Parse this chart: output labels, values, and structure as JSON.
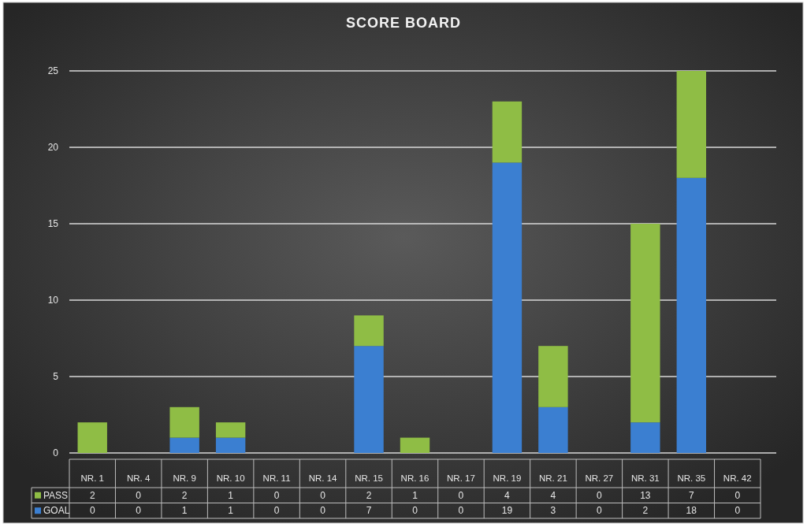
{
  "chart_data": {
    "type": "bar",
    "title": "SCORE BOARD",
    "categories": [
      "NR. 1",
      "NR. 4",
      "NR. 9",
      "NR. 10",
      "NR. 11",
      "NR. 14",
      "NR. 15",
      "NR. 16",
      "NR. 17",
      "NR. 19",
      "NR. 21",
      "NR. 27",
      "NR. 31",
      "NR. 35",
      "NR. 42"
    ],
    "series": [
      {
        "name": "GOAL",
        "color": "#3b7fd1",
        "values": [
          0,
          0,
          1,
          1,
          0,
          0,
          7,
          0,
          0,
          19,
          3,
          0,
          2,
          18,
          0
        ]
      },
      {
        "name": "PASS",
        "color": "#8fbd45",
        "values": [
          2,
          0,
          2,
          1,
          0,
          0,
          2,
          1,
          0,
          4,
          4,
          0,
          13,
          7,
          0
        ]
      }
    ],
    "stacked": true,
    "ylim": [
      0,
      25
    ],
    "yticks": [
      0,
      5,
      10,
      15,
      20,
      25
    ],
    "grid": true,
    "legend": "bottom",
    "data_labels": true
  }
}
